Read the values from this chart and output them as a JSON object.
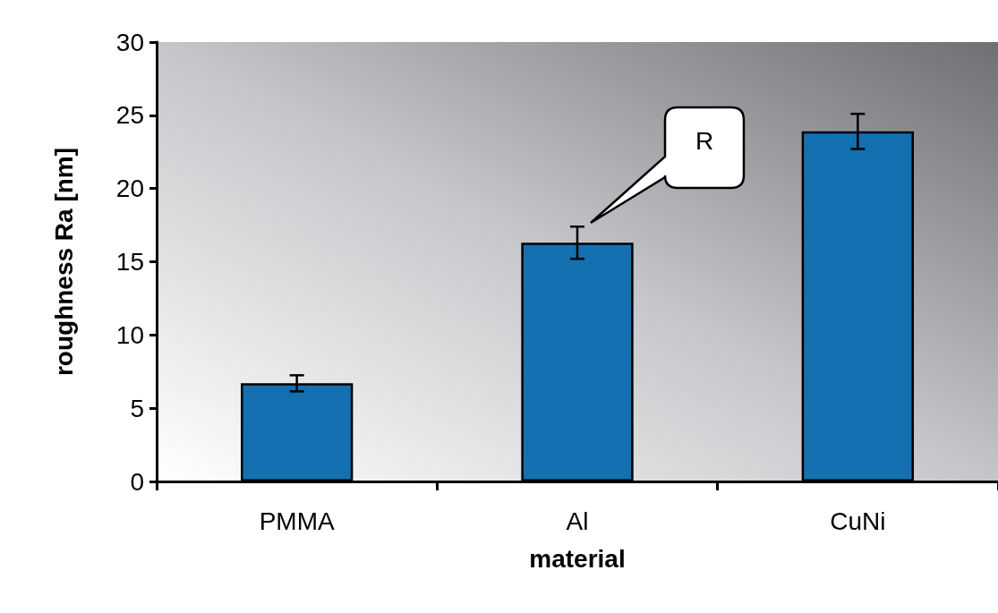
{
  "chart_data": {
    "type": "bar",
    "xlabel": "material",
    "ylabel": "roughness Ra [nm]",
    "categories": [
      "PMMA",
      "Al",
      "CuNi"
    ],
    "values": [
      6.7,
      16.3,
      23.9
    ],
    "errors": [
      0.55,
      1.1,
      1.2
    ],
    "color": "#1470b0",
    "ylim": [
      0,
      30
    ],
    "yticks": [
      0,
      5,
      10,
      15,
      20,
      25,
      30
    ],
    "grid": false,
    "annotations": [
      "R"
    ]
  }
}
